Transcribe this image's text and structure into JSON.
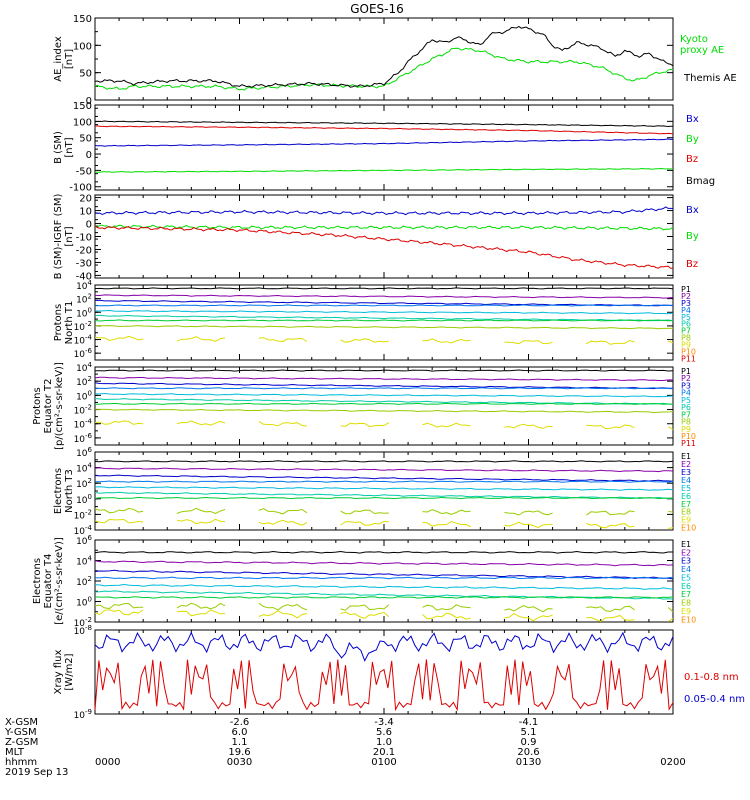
{
  "title": "GOES-16",
  "x_axis": {
    "rows": [
      {
        "label": "X-GSM",
        "values": [
          "-2.6",
          "-3.4",
          "-4.1"
        ]
      },
      {
        "label": "Y-GSM",
        "values": [
          "6.0",
          "5.6",
          "5.1"
        ]
      },
      {
        "label": "Z-GSM",
        "values": [
          "1.1",
          "1.0",
          "0.9"
        ]
      },
      {
        "label": "MLT",
        "values": [
          "19.6",
          "20.1",
          "20.6"
        ]
      }
    ],
    "hhmm_label": "hhmm",
    "hhmm_values": [
      "0000",
      "0030",
      "0100",
      "0130",
      "0200"
    ],
    "date": "2019 Sep 13"
  },
  "colors": {
    "black": "#000000",
    "green": "#00dd00",
    "red": "#dd0000",
    "blue": "#0000cc",
    "band": [
      "#000000",
      "#8800aa",
      "#0000cc",
      "#0077ee",
      "#00bbdd",
      "#00ccaa",
      "#00cc33",
      "#99cc00",
      "#dddd00",
      "#ff8800",
      "#dd0000"
    ]
  },
  "chart_data": [
    {
      "type": "line",
      "ylabel": [
        "AE_index",
        "[nT]"
      ],
      "ylim": [
        0,
        150
      ],
      "ytick_labels": [
        "0",
        "50",
        "100",
        "150"
      ],
      "xlim_minutes": [
        0,
        120
      ],
      "series": [
        {
          "name": "Kyoto proxy AE",
          "color": "#00dd00",
          "x": [
            0,
            5,
            8,
            15,
            25,
            30,
            45,
            55,
            60,
            63,
            70,
            75,
            80,
            85,
            90,
            100,
            105,
            110,
            112,
            117,
            120
          ],
          "y": [
            25,
            20,
            25,
            25,
            25,
            20,
            28,
            25,
            25,
            40,
            75,
            95,
            90,
            75,
            70,
            70,
            60,
            40,
            35,
            50,
            55
          ]
        },
        {
          "name": "Themis AE",
          "color": "#000000",
          "x": [
            0,
            5,
            8,
            15,
            25,
            30,
            45,
            55,
            60,
            63,
            65,
            70,
            73,
            75,
            80,
            82,
            85,
            88,
            90,
            93,
            95,
            97,
            100,
            103,
            105,
            108,
            110,
            113,
            115,
            118,
            120
          ],
          "y": [
            35,
            35,
            30,
            35,
            35,
            25,
            30,
            25,
            30,
            50,
            70,
            110,
            105,
            115,
            100,
            120,
            125,
            135,
            130,
            120,
            100,
            90,
            105,
            100,
            95,
            80,
            90,
            80,
            85,
            70,
            65
          ]
        }
      ]
    },
    {
      "type": "line",
      "ylabel": [
        "B (SM)",
        "[nT]"
      ],
      "ylim": [
        -110,
        150
      ],
      "ytick_labels": [
        "-100",
        "-50",
        "0",
        "50",
        "100",
        "150"
      ],
      "xlim_minutes": [
        0,
        120
      ],
      "series": [
        {
          "name": "Bx",
          "color": "#0000cc",
          "x": [
            0,
            30,
            60,
            90,
            120
          ],
          "y": [
            25,
            28,
            32,
            40,
            45
          ]
        },
        {
          "name": "By",
          "color": "#00dd00",
          "x": [
            0,
            30,
            60,
            90,
            120
          ],
          "y": [
            -55,
            -53,
            -50,
            -47,
            -45
          ]
        },
        {
          "name": "Bz",
          "color": "#dd0000",
          "x": [
            0,
            30,
            60,
            90,
            120
          ],
          "y": [
            85,
            82,
            78,
            72,
            62
          ]
        },
        {
          "name": "Bmag",
          "color": "#000000",
          "x": [
            0,
            30,
            60,
            90,
            120
          ],
          "y": [
            100,
            97,
            94,
            90,
            85
          ]
        }
      ]
    },
    {
      "type": "line",
      "ylabel": [
        "B (SM)-IGRF (SM)",
        "[nT]"
      ],
      "ylim": [
        -42,
        22
      ],
      "ytick_labels": [
        "-40",
        "-30",
        "-20",
        "-10",
        "0",
        "10",
        "20"
      ],
      "xlim_minutes": [
        0,
        120
      ],
      "series": [
        {
          "name": "Bx",
          "color": "#0000cc",
          "x": [
            0,
            30,
            60,
            90,
            110,
            120
          ],
          "y": [
            8,
            9,
            8,
            8,
            9,
            12
          ]
        },
        {
          "name": "By",
          "color": "#00dd00",
          "x": [
            0,
            30,
            60,
            90,
            120
          ],
          "y": [
            -2,
            -3,
            -3,
            -3,
            -4
          ]
        },
        {
          "name": "Bz",
          "color": "#dd0000",
          "x": [
            0,
            30,
            50,
            70,
            90,
            100,
            110,
            120
          ],
          "y": [
            -3,
            -5,
            -9,
            -15,
            -22,
            -28,
            -32,
            -34
          ]
        }
      ]
    },
    {
      "type": "line",
      "ylabel": [
        "Protons",
        "North T1"
      ],
      "log": true,
      "ylim_exp": [
        -7,
        4
      ],
      "ytick_labels": [
        "4",
        "2",
        "0",
        "-2",
        "-4",
        "-6"
      ],
      "channels": [
        "P1",
        "P2",
        "P3",
        "P4",
        "P5",
        "P6",
        "P7",
        "P8",
        "P9",
        "P10",
        "P11"
      ],
      "levels_log": [
        3.5,
        2.5,
        1.7,
        1.0,
        0.2,
        -0.5,
        -1.2,
        -2.0,
        -3.8,
        null,
        null
      ]
    },
    {
      "type": "line",
      "ylabel": [
        "Protons",
        "Equator T2",
        "[p/(cm²-s-sr-keV)]"
      ],
      "log": true,
      "ylim_exp": [
        -7,
        4
      ],
      "ytick_labels": [
        "4",
        "2",
        "0",
        "-2",
        "-4",
        "-6"
      ],
      "channels": [
        "P1",
        "P2",
        "P3",
        "P4",
        "P5",
        "P6",
        "P7",
        "P8",
        "P9",
        "P10",
        "P11"
      ],
      "levels_log": [
        3.5,
        2.5,
        1.7,
        1.0,
        0.2,
        -0.5,
        -1.2,
        -2.0,
        -3.8,
        null,
        null
      ]
    },
    {
      "type": "line",
      "ylabel": [
        "Electrons",
        "North T3"
      ],
      "log": true,
      "ylim_exp": [
        -4,
        6
      ],
      "ytick_labels": [
        "6",
        "4",
        "2",
        "0",
        "-2",
        "-4"
      ],
      "channels": [
        "E1",
        "E2",
        "E3",
        "E4",
        "E5",
        "E6",
        "E7",
        "E8",
        "E9",
        "E10"
      ],
      "levels_log": [
        4.8,
        3.9,
        3.0,
        2.2,
        1.5,
        0.8,
        0.1,
        -1.5,
        -2.8,
        null
      ]
    },
    {
      "type": "line",
      "ylabel": [
        "Electrons",
        "Equator T4",
        "[e/(cm²-s-sr-keV)]"
      ],
      "log": true,
      "ylim_exp": [
        -2,
        6
      ],
      "ytick_labels": [
        "6",
        "4",
        "2",
        "0",
        "-2"
      ],
      "channels": [
        "E1",
        "E2",
        "E3",
        "E4",
        "E5",
        "E6",
        "E7",
        "E8",
        "E9",
        "E10"
      ],
      "levels_log": [
        4.8,
        3.9,
        3.0,
        2.3,
        1.6,
        1.0,
        0.4,
        -0.4,
        -1.0,
        null
      ]
    },
    {
      "type": "line",
      "ylabel": [
        "Xray flux",
        "[W/m2]"
      ],
      "log": true,
      "ylim_exp": [
        -9,
        -8
      ],
      "ytick_labels": [
        "-8",
        "-9"
      ],
      "xlim_minutes": [
        0,
        120
      ],
      "series": [
        {
          "name": "0.1-0.8 nm",
          "color": "#dd0000",
          "level": -8.85
        },
        {
          "name": "0.05-0.4 nm",
          "color": "#0000cc",
          "level": -8.15
        }
      ]
    }
  ]
}
